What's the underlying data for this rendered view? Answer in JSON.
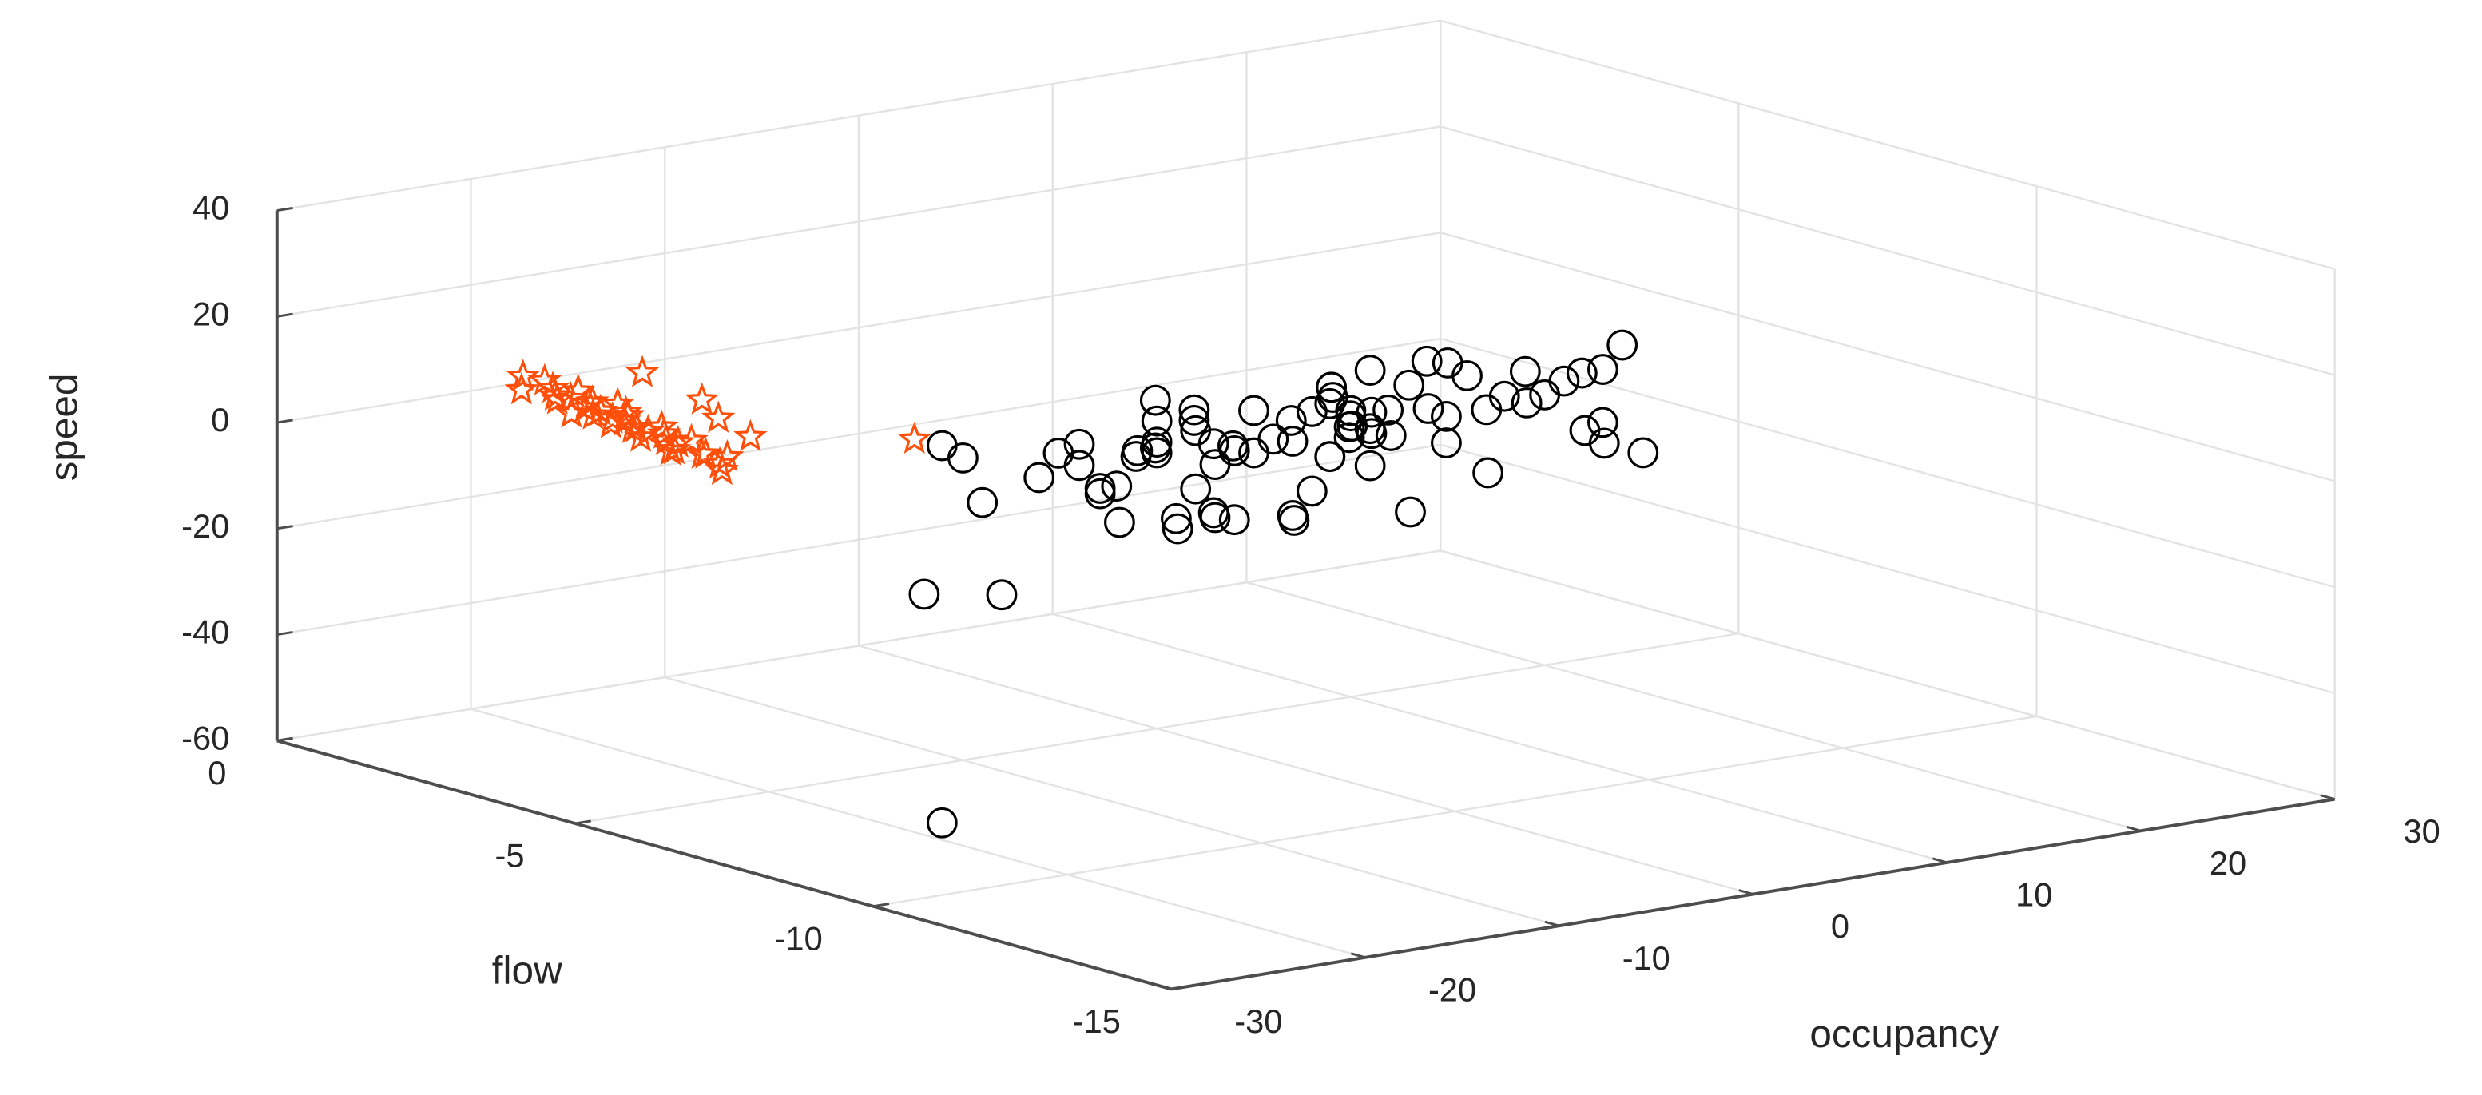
{
  "chart_data": {
    "type": "scatter3d",
    "xlabel": "flow",
    "ylabel": "occupancy",
    "zlabel": "speed",
    "xlim": [
      -15,
      0
    ],
    "xticks": [
      -15,
      -10,
      -5,
      0
    ],
    "ylim": [
      -30,
      30
    ],
    "yticks": [
      -30,
      -20,
      -10,
      0,
      10,
      20,
      30
    ],
    "zlim": [
      -60,
      40
    ],
    "zticks": [
      -60,
      -40,
      -20,
      0,
      20,
      40
    ],
    "grid": true,
    "series": [
      {
        "color": "#ff4f0a",
        "marker": "star",
        "x": [
          -2.5,
          -2.7,
          -2.8,
          -3.0,
          -3.1,
          -3.2,
          -3.3,
          -3.4,
          -3.5,
          -3.6,
          -3.6,
          -3.7,
          -3.8,
          -3.9,
          -4.0,
          -4.0,
          -4.1,
          -4.2,
          -4.3,
          -4.4,
          -4.5,
          -4.5,
          -4.6,
          -4.7,
          -4.8,
          -4.9,
          -5.0,
          -5.1,
          -5.2,
          -5.3,
          -5.4,
          -5.5,
          -5.6,
          -5.8,
          -6.0,
          -3.2,
          -4.2,
          -4.8,
          -5.5,
          -3.8,
          -5
        ],
        "y": [
          -25,
          -24.5,
          -26,
          -25,
          -24,
          -25.5,
          -25,
          -26,
          -24.5,
          -25,
          -23.5,
          -25.5,
          -25,
          -24,
          -26,
          -25,
          -24.5,
          -25,
          -26,
          -25,
          -24,
          -25.5,
          -25,
          -24.5,
          -26,
          -25,
          -24,
          -25,
          -25.5,
          -26,
          -24.5,
          -25,
          -24,
          -25,
          -25.5,
          -21,
          -21,
          -22,
          -22.5,
          -26.5,
          -12.5
        ],
        "z": [
          13.5,
          13,
          12.5,
          12.8,
          12,
          12.3,
          11.8,
          12.5,
          11.5,
          11.9,
          10.8,
          11.6,
          11,
          10.5,
          11.5,
          10.2,
          10.8,
          10.4,
          10.8,
          9.8,
          9.6,
          10.2,
          9.7,
          9.2,
          9.8,
          8.9,
          8.6,
          9.1,
          8.4,
          8.8,
          7.6,
          8.2,
          7.4,
          7.3,
          7.0,
          14,
          12,
          11,
          10,
          11.5,
          2
        ]
      },
      {
        "color": "#000000",
        "marker": "circle",
        "x": [
          -5,
          -4,
          -6,
          -5,
          -5,
          -4,
          -6,
          -5,
          -4,
          -5,
          -5,
          -4,
          -6,
          -5,
          -5,
          -4,
          -6,
          -5,
          -4,
          -5,
          -5,
          -4,
          -6,
          -5,
          -5,
          -4,
          -6,
          -5,
          -4,
          -5,
          -5,
          -4,
          -6,
          -5,
          -5,
          -4,
          -6,
          -5,
          -4,
          -5,
          -5,
          -4,
          -6,
          -5,
          -5,
          -4,
          -6,
          -5,
          -4,
          -5,
          -5,
          -4,
          -6,
          -5,
          -5,
          -4,
          -6,
          -5,
          -4,
          -5,
          -5,
          -4,
          -6,
          -5,
          -5,
          -4,
          -6,
          -5,
          -4,
          -5,
          -5,
          -4,
          -6,
          -5,
          -5,
          -4,
          -6,
          -5,
          -4,
          -5,
          -5,
          -5,
          -8
        ],
        "y": [
          -10,
          -8,
          -6,
          -9,
          -4,
          -2,
          -5,
          0,
          1,
          -1,
          2,
          3,
          4,
          5,
          6,
          7,
          8,
          9,
          10,
          11,
          3,
          5,
          7,
          2,
          4,
          6,
          8,
          10,
          12,
          1,
          0,
          -3,
          -6,
          13,
          14,
          15,
          16,
          17,
          18,
          19,
          20,
          21,
          22,
          23,
          24,
          25,
          9,
          11,
          13,
          7,
          5,
          3,
          6,
          8,
          10,
          12,
          14,
          4,
          2,
          0,
          15,
          17,
          19,
          21,
          23,
          12,
          10,
          8,
          6,
          9,
          11,
          13,
          -2,
          -4,
          16,
          18,
          20,
          7,
          5,
          3,
          -12,
          -8,
          -20.3
        ],
        "z": [
          -3,
          -5,
          -8,
          -12,
          -4,
          -10,
          -15,
          -2,
          -18,
          -7,
          -5,
          -12,
          -20,
          -3,
          -9,
          -14,
          -6,
          -1,
          -11,
          -17,
          -22,
          -8,
          -4,
          -16,
          -10,
          -13,
          -2,
          -7,
          -19,
          -21,
          -6,
          -14,
          -9,
          -3,
          -8,
          -12,
          -5,
          -10,
          -15,
          -4,
          -9,
          -13,
          -18,
          -6,
          -2,
          -11,
          -7,
          1,
          -16,
          -24,
          -11,
          -3,
          2,
          -20,
          -6,
          -9,
          -17,
          -23,
          -13,
          -8,
          0,
          -4,
          -12,
          -7,
          -16,
          -19,
          -22,
          -5,
          -26,
          -1,
          -10,
          -14,
          -18,
          -8,
          -3,
          -20,
          -15,
          -10,
          -6,
          -12,
          -27.5,
          -30,
          -56.3
        ]
      }
    ]
  }
}
